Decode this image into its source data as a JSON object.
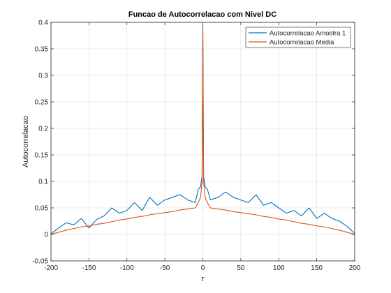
{
  "chart_data": {
    "type": "line",
    "title": "Funcao de Autocorrelacao com Nivel DC",
    "xlabel": "τ",
    "ylabel": "Autocorrelacao",
    "xlim": [
      -200,
      200
    ],
    "ylim": [
      -0.05,
      0.4
    ],
    "grid": true,
    "legend_position": "top-right",
    "x_ticks": [
      -200,
      -150,
      -100,
      -50,
      0,
      50,
      100,
      150,
      200
    ],
    "y_ticks": [
      -0.05,
      0,
      0.05,
      0.1,
      0.15,
      0.2,
      0.25,
      0.3,
      0.35,
      0.4
    ],
    "x_tick_labels": [
      "-200",
      "-150",
      "-100",
      "-50",
      "0",
      "50",
      "100",
      "150",
      "200"
    ],
    "y_tick_labels": [
      "-0.05",
      "0",
      "0.05",
      "0.1",
      "0.15",
      "0.2",
      "0.25",
      "0.3",
      "0.35",
      "0.4"
    ],
    "series": [
      {
        "name": "Autocorrelacao Amostra 1",
        "color": "#0072BD",
        "x": [
          -200,
          -190,
          -180,
          -170,
          -160,
          -150,
          -140,
          -130,
          -120,
          -110,
          -100,
          -90,
          -80,
          -70,
          -60,
          -50,
          -40,
          -30,
          -20,
          -10,
          -6,
          -3,
          -1,
          0,
          1,
          3,
          6,
          10,
          20,
          30,
          40,
          50,
          60,
          70,
          80,
          90,
          100,
          110,
          120,
          130,
          140,
          150,
          160,
          170,
          180,
          190,
          200
        ],
        "y": [
          0.001,
          0.012,
          0.022,
          0.018,
          0.03,
          0.012,
          0.028,
          0.035,
          0.05,
          0.04,
          0.045,
          0.06,
          0.045,
          0.07,
          0.055,
          0.065,
          0.07,
          0.075,
          0.065,
          0.06,
          0.085,
          0.09,
          0.11,
          0.395,
          0.11,
          0.09,
          0.085,
          0.065,
          0.07,
          0.08,
          0.07,
          0.065,
          0.06,
          0.075,
          0.055,
          0.06,
          0.05,
          0.04,
          0.045,
          0.035,
          0.05,
          0.03,
          0.04,
          0.03,
          0.025,
          0.015,
          0.002
        ]
      },
      {
        "name": "Autocorrelacao Media",
        "color": "#D95319",
        "x": [
          -200,
          -190,
          -180,
          -170,
          -160,
          -150,
          -140,
          -130,
          -120,
          -110,
          -100,
          -90,
          -80,
          -70,
          -60,
          -50,
          -40,
          -30,
          -20,
          -10,
          -6,
          -3,
          -1,
          0,
          1,
          3,
          6,
          10,
          20,
          30,
          40,
          50,
          60,
          70,
          80,
          90,
          100,
          110,
          120,
          130,
          140,
          150,
          160,
          170,
          180,
          190,
          200
        ],
        "y": [
          0.0,
          0.004,
          0.008,
          0.011,
          0.014,
          0.016,
          0.019,
          0.021,
          0.024,
          0.027,
          0.029,
          0.032,
          0.034,
          0.037,
          0.039,
          0.041,
          0.043,
          0.046,
          0.048,
          0.05,
          0.06,
          0.07,
          0.1,
          0.39,
          0.1,
          0.07,
          0.06,
          0.05,
          0.048,
          0.046,
          0.043,
          0.041,
          0.039,
          0.037,
          0.034,
          0.032,
          0.029,
          0.027,
          0.024,
          0.021,
          0.019,
          0.016,
          0.014,
          0.011,
          0.008,
          0.004,
          0.0
        ]
      }
    ]
  }
}
